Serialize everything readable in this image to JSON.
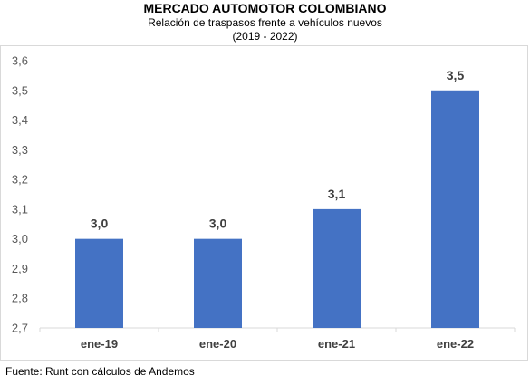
{
  "header": {
    "title": "MERCADO AUTOMOTOR COLOMBIANO",
    "subtitle_line1": "Relación de traspasos frente a vehículos nuevos",
    "subtitle_line2": "(2019 - 2022)"
  },
  "footer": {
    "source": "Fuente: Runt con cálculos de Andemos"
  },
  "chart_data": {
    "type": "bar",
    "title": "MERCADO AUTOMOTOR COLOMBIANO",
    "subtitle": "Relación de traspasos frente a vehículos nuevos (2019 - 2022)",
    "xlabel": "",
    "ylabel": "",
    "categories": [
      "ene-19",
      "ene-20",
      "ene-21",
      "ene-22"
    ],
    "values": [
      3.0,
      3.0,
      3.1,
      3.5
    ],
    "data_labels": [
      "3,0",
      "3,0",
      "3,1",
      "3,5"
    ],
    "ylim": [
      2.7,
      3.6
    ],
    "yticks": [
      2.7,
      2.8,
      2.9,
      3.0,
      3.1,
      3.2,
      3.3,
      3.4,
      3.5,
      3.6
    ],
    "ytick_labels": [
      "2,7",
      "2,8",
      "2,9",
      "3,0",
      "3,1",
      "3,2",
      "3,3",
      "3,4",
      "3,5",
      "3,6"
    ],
    "grid": false,
    "legend": "none",
    "bar_color": "#4472C4",
    "axis_color": "#d9d9d9"
  }
}
